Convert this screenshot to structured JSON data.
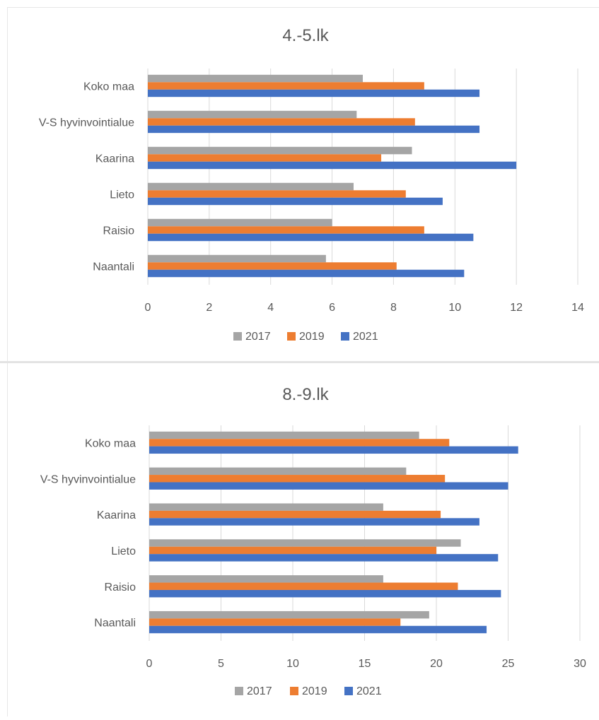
{
  "chart_data": [
    {
      "type": "bar",
      "orientation": "horizontal",
      "title": "4.-5.lk",
      "categories": [
        "Koko maa",
        "V-S hyvinvointialue",
        "Kaarina",
        "Lieto",
        "Raisio",
        "Naantali"
      ],
      "series": [
        {
          "name": "2017",
          "color": "#a5a5a5",
          "values": [
            7.0,
            6.8,
            8.6,
            6.7,
            6.0,
            5.8
          ]
        },
        {
          "name": "2019",
          "color": "#ed7d31",
          "values": [
            9.0,
            8.7,
            7.6,
            8.4,
            9.0,
            8.1
          ]
        },
        {
          "name": "2021",
          "color": "#4472c4",
          "values": [
            10.8,
            10.8,
            12.0,
            9.6,
            10.6,
            10.3
          ]
        }
      ],
      "xlim": [
        0,
        14
      ],
      "xticks": [
        "0",
        "2",
        "4",
        "6",
        "8",
        "10",
        "12",
        "14"
      ],
      "grid": true,
      "legend": "bottom"
    },
    {
      "type": "bar",
      "orientation": "horizontal",
      "title": "8.-9.lk",
      "categories": [
        "Koko maa",
        "V-S hyvinvointialue",
        "Kaarina",
        "Lieto",
        "Raisio",
        "Naantali"
      ],
      "series": [
        {
          "name": "2017",
          "color": "#a5a5a5",
          "values": [
            18.8,
            17.9,
            16.3,
            21.7,
            16.3,
            19.5
          ]
        },
        {
          "name": "2019",
          "color": "#ed7d31",
          "values": [
            20.9,
            20.6,
            20.3,
            20.0,
            21.5,
            17.5
          ]
        },
        {
          "name": "2021",
          "color": "#4472c4",
          "values": [
            25.7,
            25.0,
            23.0,
            24.3,
            24.5,
            23.5
          ]
        }
      ],
      "xlim": [
        0,
        30
      ],
      "xticks": [
        "0",
        "5",
        "10",
        "15",
        "20",
        "25",
        "30"
      ],
      "grid": true,
      "legend": "bottom"
    }
  ]
}
